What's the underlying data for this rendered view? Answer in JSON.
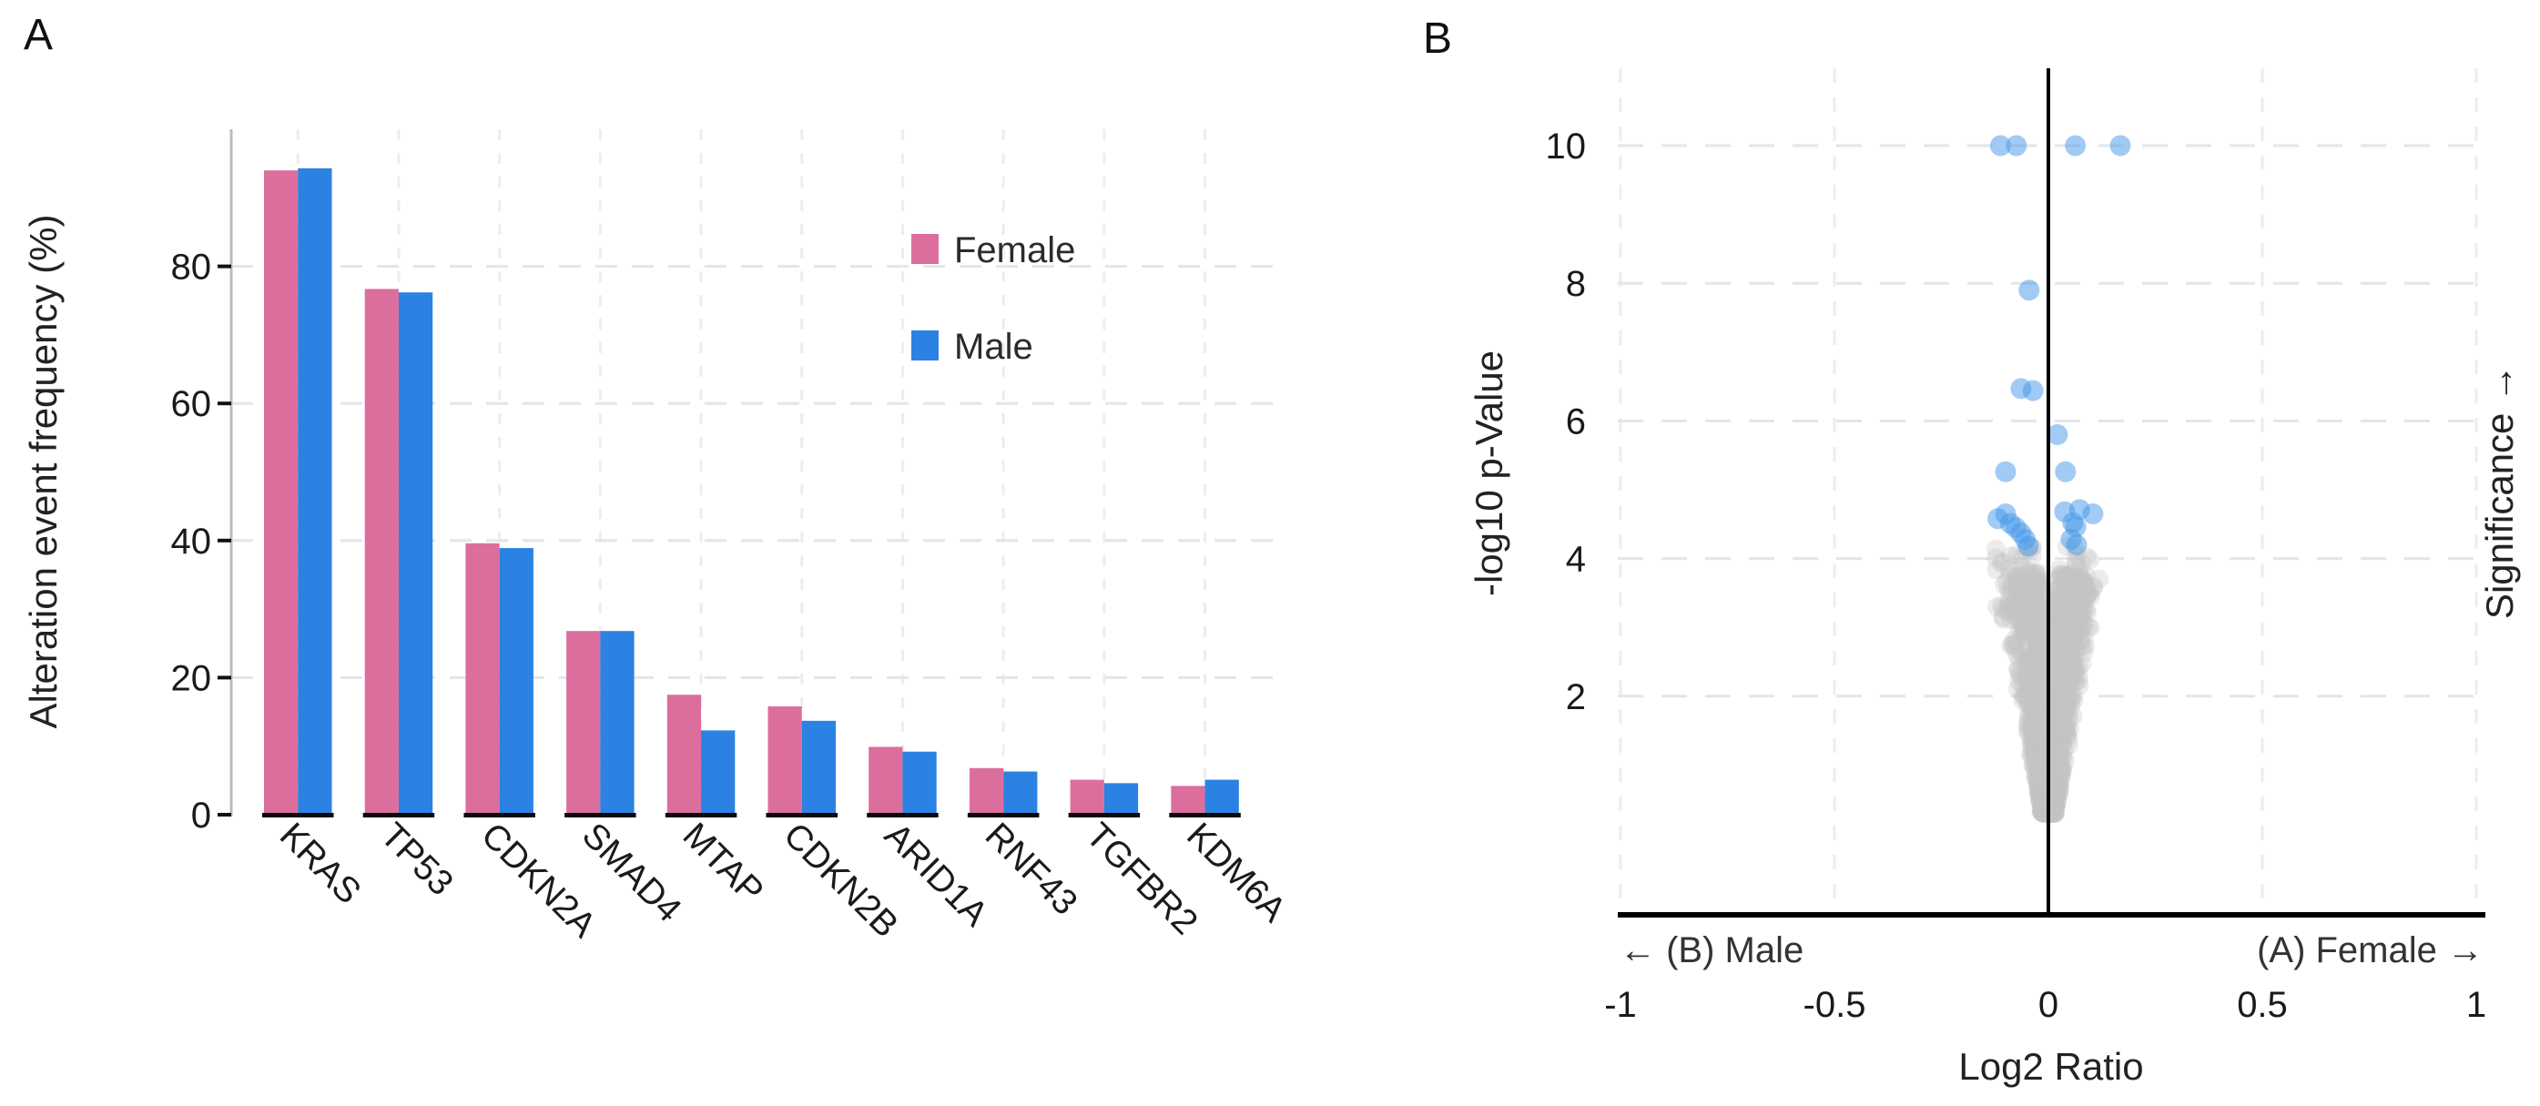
{
  "panels": {
    "a": "A",
    "b": "B"
  },
  "colors": {
    "female": "#DC6E9E",
    "male": "#2B82E2",
    "significant_point": "#4397EA",
    "background_point": "#C4C4C4",
    "grid_major": "#E2E6EA",
    "grid_minor": "#EBEEF1",
    "axis_line": "#B8BCC0",
    "black": "#0A0A0A"
  },
  "chart_data": [
    {
      "type": "bar",
      "panel": "A",
      "ylabel": "Alteration event frequency (%)",
      "ylim": [
        0,
        100
      ],
      "ytick_values": [
        0,
        20,
        40,
        60,
        80
      ],
      "ytick_labels": [
        "0",
        "20",
        "40",
        "60",
        "80"
      ],
      "categories": [
        "KRAS",
        "TP53",
        "CDKN2A",
        "SMAD4",
        "MTAP",
        "CDKN2B",
        "ARID1A",
        "RNF43",
        "TGFBR2",
        "KDM6A"
      ],
      "series": [
        {
          "name": "Female",
          "values": [
            94.0,
            76.7,
            39.6,
            26.8,
            17.5,
            15.8,
            9.9,
            6.8,
            5.1,
            4.2
          ]
        },
        {
          "name": "Male",
          "values": [
            94.3,
            76.2,
            38.9,
            26.8,
            12.3,
            13.7,
            9.2,
            6.3,
            4.6,
            5.1
          ]
        }
      ],
      "legend_position": "upper right inside",
      "grid": true
    },
    {
      "type": "scatter",
      "subtype": "volcano",
      "panel": "B",
      "xlabel": "Log2 Ratio",
      "ylabel": "-log10 p-Value",
      "right_label": "Significance →",
      "annotations": {
        "left": "← (B) Male",
        "right": "(A) Female →"
      },
      "xlim": [
        -1,
        1
      ],
      "ylim": [
        0,
        11.1
      ],
      "xtick_values": [
        -1,
        -0.5,
        0,
        0.5,
        1
      ],
      "xtick_labels": [
        "-1",
        "-0.5",
        "0",
        "0.5",
        "1"
      ],
      "ytick_values": [
        2,
        4,
        6,
        8,
        10
      ],
      "ytick_labels": [
        "2",
        "4",
        "6",
        "8",
        "10"
      ],
      "zero_line_x": 0,
      "significant_points": [
        [
          -0.112,
          10
        ],
        [
          -0.075,
          10
        ],
        [
          0.063,
          10
        ],
        [
          0.168,
          10
        ],
        [
          -0.045,
          7.9
        ],
        [
          -0.064,
          6.47
        ],
        [
          -0.036,
          6.44
        ],
        [
          0.021,
          5.8
        ],
        [
          -0.1,
          5.26
        ],
        [
          0.04,
          5.26
        ],
        [
          0.038,
          4.68
        ],
        [
          0.073,
          4.71
        ],
        [
          0.104,
          4.65
        ],
        [
          0.057,
          4.52
        ],
        [
          0.064,
          4.46
        ],
        [
          0.053,
          4.28
        ],
        [
          0.066,
          4.2
        ],
        [
          -0.118,
          4.58
        ],
        [
          -0.1,
          4.65
        ],
        [
          -0.089,
          4.51
        ],
        [
          -0.076,
          4.45
        ],
        [
          -0.064,
          4.37
        ],
        [
          -0.054,
          4.28
        ],
        [
          -0.047,
          4.18
        ]
      ],
      "background_cloud": {
        "description": "dense overplotted cloud of non-significant proteins, funnel/teardrop centered at log2ratio 0",
        "n_main": 1500,
        "u_tip": 0.3,
        "u_top": 3.8,
        "u_exponent": 1.75,
        "width_base": 0.008,
        "width_slope": 0.0315,
        "notch_start": 2.55,
        "notch_slope": 0.018,
        "arms": {
          "n": 80,
          "u_min": 3.1,
          "u_max": 4.18,
          "left_fraction": 0.55,
          "v_left": [
            -0.125,
            -0.035
          ],
          "v_right": [
            0.025,
            0.1
          ]
        },
        "seed": 42
      }
    }
  ]
}
